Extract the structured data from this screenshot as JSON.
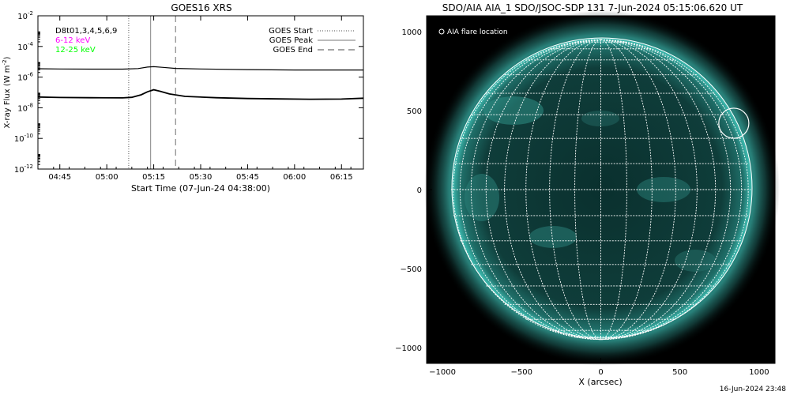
{
  "footer": {
    "timestamp": "16-Jun-2024 23:48"
  },
  "chart_data": [
    {
      "type": "line",
      "title": "GOES16 XRS",
      "xlabel": "Start Time (07-Jun-24 04:38:00)",
      "ylabel": "X-ray Flux (W m⁻²)",
      "ylabel_parts": {
        "main": "X-ray Flux (W m",
        "sup": "-2",
        "close": ")"
      },
      "y_scale": "log",
      "ylim": [
        1e-12,
        0.01
      ],
      "yticks": [
        {
          "value": 0.01,
          "base": "10",
          "exp": "-2"
        },
        {
          "value": 0.0001,
          "base": "10",
          "exp": "-4"
        },
        {
          "value": 1e-06,
          "base": "10",
          "exp": "-6"
        },
        {
          "value": 1e-08,
          "base": "10",
          "exp": "-8"
        },
        {
          "value": 1e-10,
          "base": "10",
          "exp": "-10"
        },
        {
          "value": 1e-12,
          "base": "10",
          "exp": "-12"
        }
      ],
      "xlim": [
        "04:38",
        "06:22"
      ],
      "xticks": [
        "04:45",
        "05:00",
        "05:15",
        "05:30",
        "05:45",
        "06:00",
        "06:15"
      ],
      "detector_label": "D8t01,3,4,5,6,9",
      "legend_channels": [
        {
          "label": "6-12 keV",
          "color": "#ff00ff"
        },
        {
          "label": "12-25 keV",
          "color": "#00ff00"
        }
      ],
      "event_legend": [
        {
          "name": "GOES Start",
          "style": "dotted",
          "time": "05:07"
        },
        {
          "name": "GOES Peak",
          "style": "solid",
          "time": "05:14"
        },
        {
          "name": "GOES End",
          "style": "dashed",
          "time": "05:22"
        }
      ],
      "series": [
        {
          "channel": "long",
          "x": [
            "04:38",
            "04:45",
            "04:55",
            "05:05",
            "05:10",
            "05:13",
            "05:15",
            "05:18",
            "05:22",
            "05:30",
            "05:45",
            "06:00",
            "06:10",
            "06:22"
          ],
          "y": [
            3.5e-06,
            3.4e-06,
            3.3e-06,
            3.3e-06,
            3.6e-06,
            4.5e-06,
            4.8e-06,
            4.3e-06,
            3.7e-06,
            3.4e-06,
            3.1e-06,
            2.9e-06,
            2.9e-06,
            2.9e-06
          ]
        },
        {
          "channel": "short",
          "x": [
            "04:38",
            "04:45",
            "04:55",
            "05:05",
            "05:08",
            "05:11",
            "05:13",
            "05:15",
            "05:17",
            "05:20",
            "05:25",
            "05:35",
            "05:45",
            "05:55",
            "06:05",
            "06:15",
            "06:22"
          ],
          "y": [
            5e-08,
            4.7e-08,
            4.5e-08,
            4.4e-08,
            4.8e-08,
            7e-08,
            1.1e-07,
            1.5e-07,
            1.2e-07,
            8e-08,
            5.5e-08,
            4.5e-08,
            4e-08,
            3.8e-08,
            3.6e-08,
            3.7e-08,
            4.2e-08
          ]
        }
      ]
    },
    {
      "type": "image",
      "title": "SDO/AIA AIA_1 SDO/JSOC-SDP 131  7-Jun-2024 05:15:06.620 UT",
      "xlabel": "X (arcsec)",
      "xlim": [
        -1100,
        1100
      ],
      "ylim": [
        -1100,
        1100
      ],
      "xticks": [
        -1000,
        -500,
        0,
        500,
        1000
      ],
      "yticks": [
        -1000,
        -500,
        0,
        500,
        1000
      ],
      "solar_radius_arcsec": 946,
      "grid_spacing_deg": 10,
      "legend": "AIA flare location",
      "flare_location": {
        "x": 840,
        "y": 420,
        "radius_arcsec": 95
      },
      "colors": {
        "background": "#000000",
        "disk": "#0e3b38",
        "corona": "#3fbfb4",
        "grid": "#ffffff"
      }
    }
  ]
}
